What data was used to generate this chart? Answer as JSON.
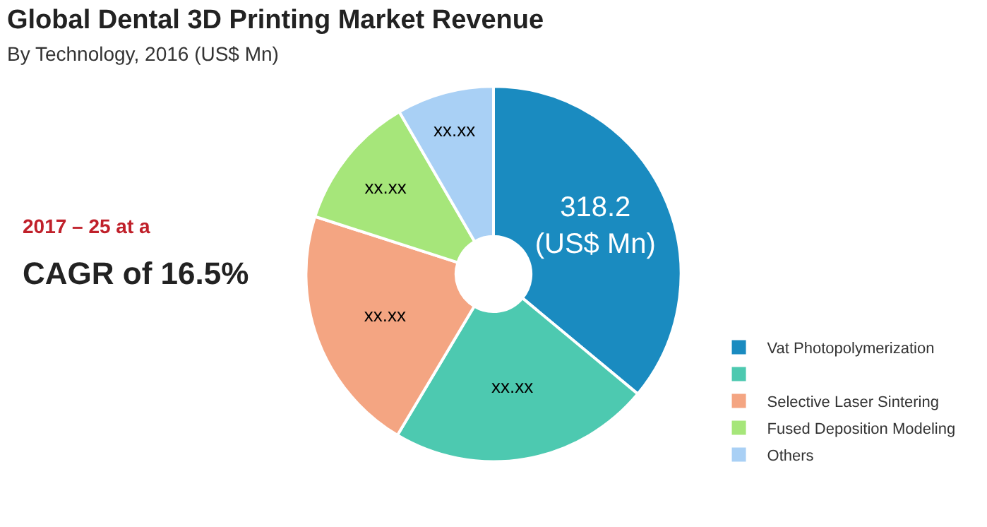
{
  "chart_data": {
    "type": "donut",
    "title": "Global Dental 3D Printing Market Revenue",
    "subtitle": "By Technology, 2016 (US$ Mn)",
    "categories": [
      "Vat Photopolymerization",
      null,
      "Selective Laser Sintering",
      "Fused Deposition Modeling",
      "Others"
    ],
    "values": [
      318.2,
      199,
      189,
      103,
      74
    ],
    "value_labels": [
      "318.2\n(US$ Mn)",
      "xx.xx",
      "xx.xx",
      "xx.xx",
      "xx.xx"
    ],
    "colors": [
      "#1a8bc0",
      "#4dc9b0",
      "#f4a582",
      "#a6e67a",
      "#a9d0f5"
    ],
    "annotations": [
      "2017 – 25 at a",
      "CAGR of 16.5%"
    ],
    "legend": "bottom right"
  }
}
